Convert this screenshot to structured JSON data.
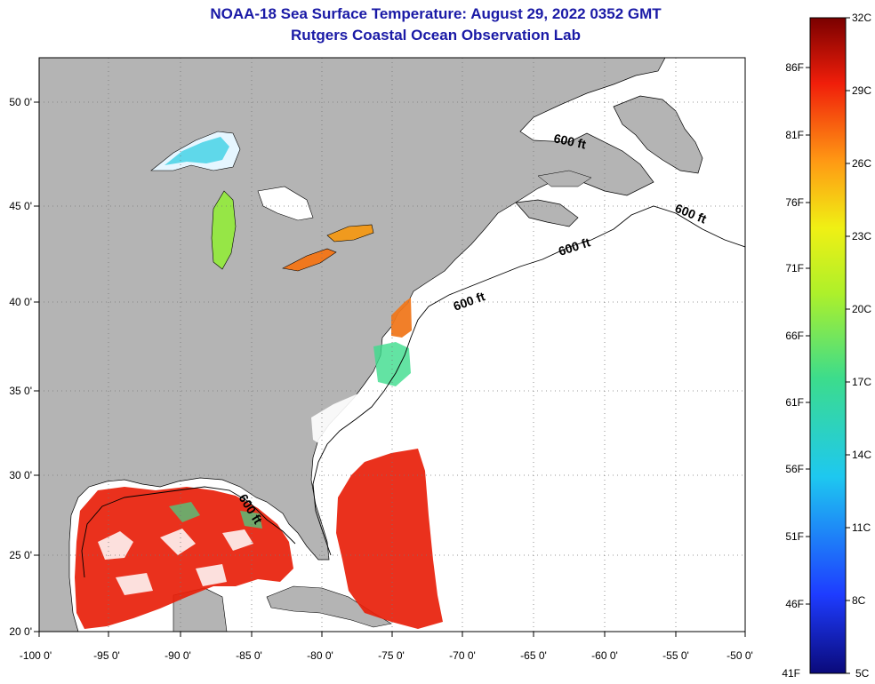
{
  "title": {
    "line1": "NOAA-18 Sea Surface Temperature:  August 29, 2022 0352 GMT",
    "line2": "Rutgers Coastal Ocean Observation Lab"
  },
  "axes": {
    "longitude_labels": [
      "-100 0'",
      "-95 0'",
      "-90 0'",
      "-85 0'",
      "-80 0'",
      "-75 0'",
      "-70 0'",
      "-65 0'",
      "-60 0'",
      "-55 0'",
      "-50 0'"
    ],
    "latitude_labels": [
      "50 0'",
      "45 0'",
      "40 0'",
      "35 0'",
      "30 0'",
      "25 0'",
      "20 0'"
    ]
  },
  "contour": {
    "label": "600 ft"
  },
  "colorbar": {
    "celsius_labels": [
      "32C",
      "29C",
      "26C",
      "23C",
      "20C",
      "17C",
      "14C",
      "11C",
      "8C",
      "5C"
    ],
    "fahrenheit_labels": [
      "86F",
      "81F",
      "76F",
      "71F",
      "66F",
      "61F",
      "56F",
      "51F",
      "46F",
      "41F"
    ]
  },
  "colors": {
    "land": "#b4b4b4",
    "title": "#1a1aa6",
    "warm": "#e8200a",
    "cool": "#1ec8e6"
  }
}
